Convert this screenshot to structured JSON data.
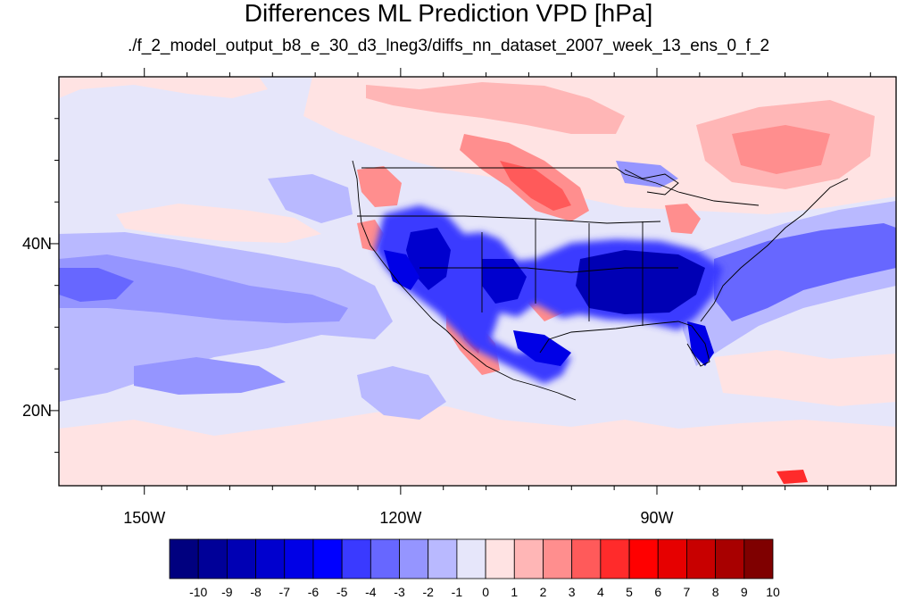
{
  "title": "Differences ML Prediction VPD [hPa]",
  "subtitle": "./f_2_model_output_b8_e_30_d3_lneg3/diffs_nn_dataset_2007_week_13_ens_0_f_2",
  "map": {
    "type": "filled-contour",
    "lon_range": [
      -160,
      -62
    ],
    "lat_range": [
      11,
      60
    ],
    "x_ticks": [
      {
        "lon": -150,
        "label": "150W"
      },
      {
        "lon": -120,
        "label": "120W"
      },
      {
        "lon": -90,
        "label": "90W"
      }
    ],
    "y_ticks": [
      {
        "lat": 40,
        "label": "40N"
      },
      {
        "lat": 20,
        "label": "20N"
      }
    ]
  },
  "colorbar": {
    "labels": [
      "-10",
      "-9",
      "-8",
      "-7",
      "-6",
      "-5",
      "-4",
      "-3",
      "-2",
      "-1",
      "0",
      "1",
      "2",
      "3",
      "4",
      "5",
      "6",
      "7",
      "8",
      "9",
      "10"
    ],
    "colors": [
      "#00007f",
      "#000098",
      "#0000b4",
      "#0000ce",
      "#0000e6",
      "#0000ff",
      "#3a3aff",
      "#6767ff",
      "#9595ff",
      "#b9b9ff",
      "#e6e6fa",
      "#ffe3e3",
      "#ffb6b6",
      "#ff8e8e",
      "#ff5a5a",
      "#ff2b2b",
      "#ff0000",
      "#e60000",
      "#c80000",
      "#a80000",
      "#7f0000"
    ]
  }
}
